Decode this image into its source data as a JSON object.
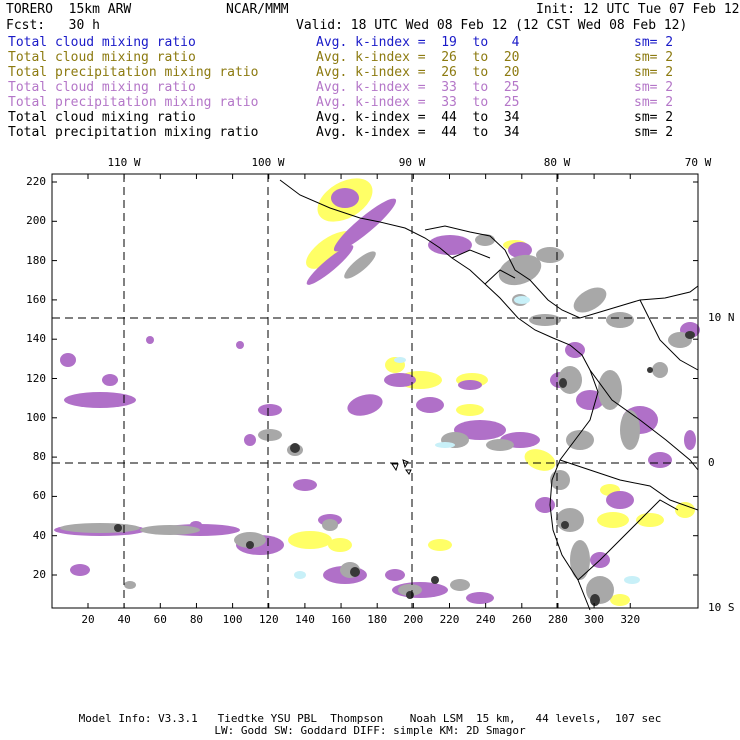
{
  "header": {
    "model": "TORERO  15km ARW",
    "center": "NCAR/MMM",
    "init": "Init: 12 UTC Tue 07 Feb 12",
    "fcst": "Fcst:   30 h",
    "valid": "Valid: 18 UTC Wed 08 Feb 12 (12 CST Wed 08 Feb 12)"
  },
  "legend": [
    {
      "label": "Total cloud mixing ratio",
      "kindex": "Avg. k-index =  19  to   4",
      "sm": "sm= 2",
      "color": "#1a1ac8"
    },
    {
      "label": "Total cloud mixing ratio",
      "kindex": "Avg. k-index =  26  to  20",
      "sm": "sm= 2",
      "color": "#8c7a10"
    },
    {
      "label": "Total precipitation mixing ratio",
      "kindex": "Avg. k-index =  26  to  20",
      "sm": "sm= 2",
      "color": "#8c7a10"
    },
    {
      "label": "Total cloud mixing ratio",
      "kindex": "Avg. k-index =  33  to  25",
      "sm": "sm= 2",
      "color": "#b476c8"
    },
    {
      "label": "Total precipitation mixing ratio",
      "kindex": "Avg. k-index =  33  to  25",
      "sm": "sm= 2",
      "color": "#b476c8"
    },
    {
      "label": "Total cloud mixing ratio",
      "kindex": "Avg. k-index =  44  to  34",
      "sm": "sm= 2",
      "color": "#000000"
    },
    {
      "label": "Total precipitation mixing ratio",
      "kindex": "Avg. k-index =  44  to  34",
      "sm": "sm= 2",
      "color": "#000000"
    }
  ],
  "map": {
    "lon_labels": [
      "110 W",
      "100 W",
      "90 W",
      "80 W",
      "70 W"
    ],
    "lat_labels": [
      "10 N",
      "0",
      "10 S"
    ],
    "y_ticks": [
      "220",
      "200",
      "180",
      "160",
      "140",
      "120",
      "100",
      "80",
      "60",
      "40",
      "20"
    ],
    "x_ticks": [
      "20",
      "40",
      "60",
      "80",
      "100",
      "120",
      "140",
      "160",
      "180",
      "200",
      "220",
      "240",
      "260",
      "280",
      "300",
      "320"
    ]
  },
  "footer": {
    "line1": "Model Info: V3.3.1   Tiedtke YSU PBL  Thompson    Noah LSM  15 km,   44 levels,  107 sec",
    "line2": "LW: Godd SW: Goddard DIFF: simple KM: 2D Smagor"
  },
  "colors": {
    "yellow": "#ffff66",
    "purple": "#b070c8",
    "gray": "#a8a8a8",
    "dark": "#383838",
    "cyan": "#c8f0f8"
  }
}
